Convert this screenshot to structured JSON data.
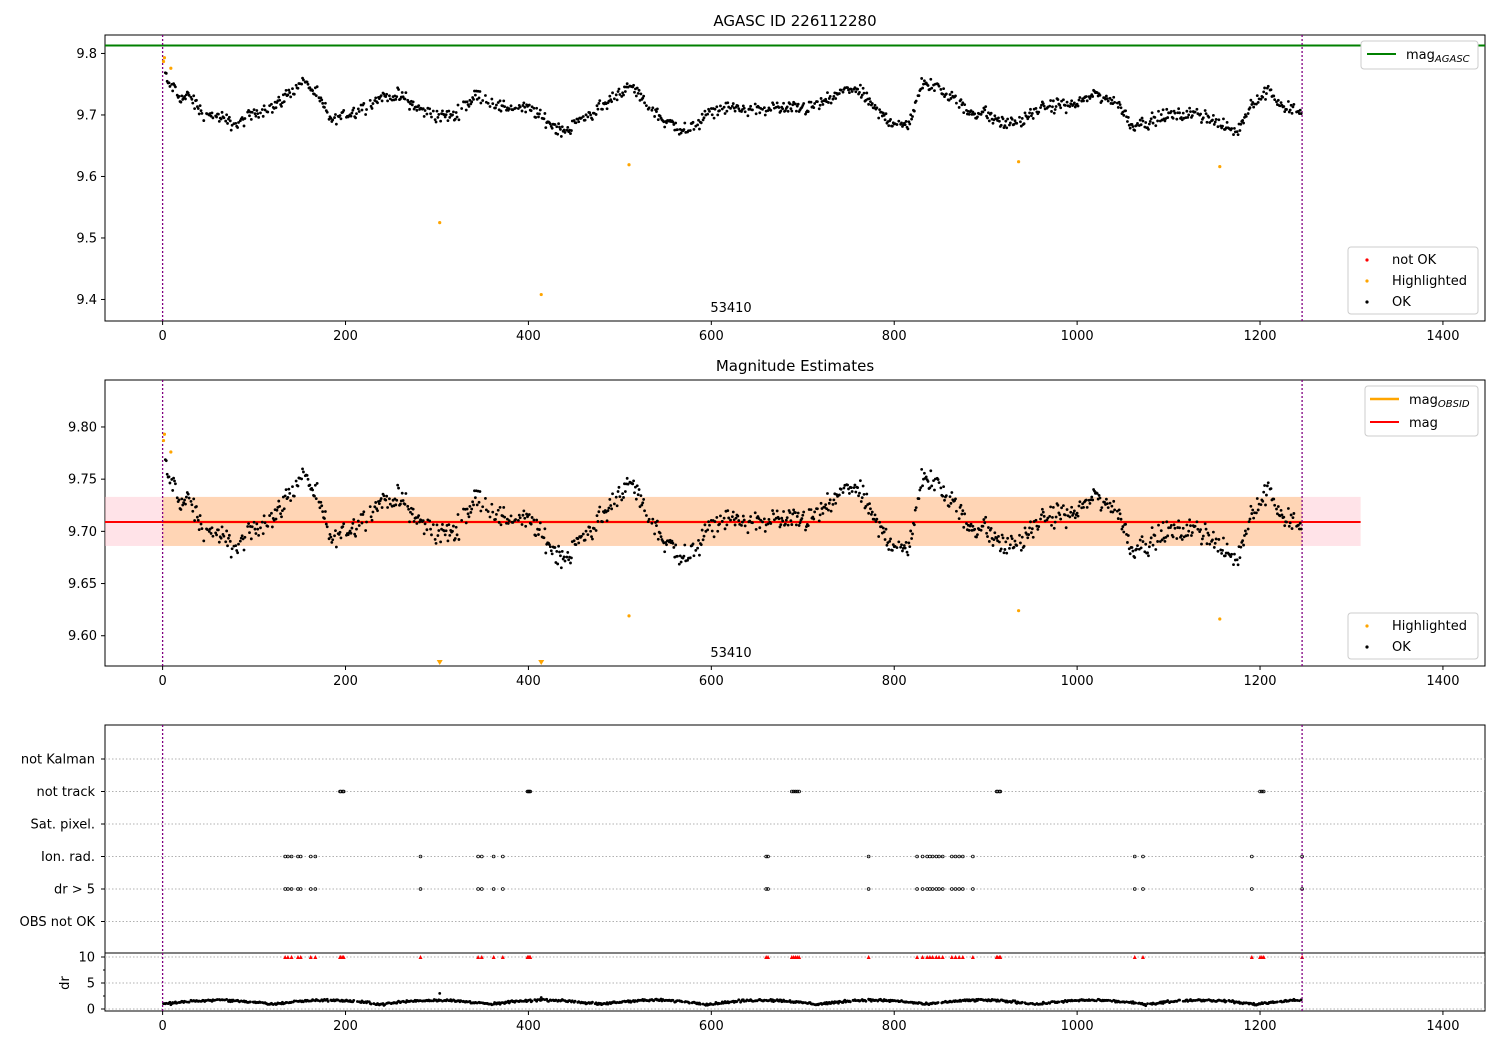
{
  "chart_data": [
    {
      "type": "scatter",
      "title": "AGASC ID 226112280",
      "xlim": [
        -63,
        1446
      ],
      "ylim": [
        9.365,
        9.83
      ],
      "xticks": [
        0,
        200,
        400,
        600,
        800,
        1000,
        1200,
        1400
      ],
      "xtick_labels": [
        "0",
        "200",
        "400",
        "600",
        "800",
        "1000",
        "1200",
        "1400"
      ],
      "yticks": [
        9.4,
        9.5,
        9.6,
        9.7,
        9.8
      ],
      "ytick_labels": [
        "9.4",
        "9.5",
        "9.6",
        "9.7",
        "9.8"
      ],
      "obsid_label": "53410",
      "obsid_label_x": 620,
      "obsid_bounds": [
        0,
        1246
      ],
      "mag_agasc": 9.813,
      "mag_agasc_xrange": [
        -63,
        1446
      ],
      "legend_top": {
        "entries": [
          {
            "label_main": "mag",
            "label_sub": "AGASC",
            "color": "#008000",
            "style": "line"
          }
        ]
      },
      "legend_bottom": {
        "entries": [
          {
            "label": "not OK",
            "color": "#ff0000",
            "style": "dot"
          },
          {
            "label": "Highlighted",
            "color": "#ffa500",
            "style": "dot"
          },
          {
            "label": "OK",
            "color": "#000000",
            "style": "dot"
          }
        ]
      },
      "highlighted_points": [
        [
          1,
          9.787
        ],
        [
          2,
          9.793
        ],
        [
          9,
          9.776
        ],
        [
          303,
          9.525
        ],
        [
          414,
          9.408
        ],
        [
          510,
          9.619
        ],
        [
          936,
          9.624
        ],
        [
          1156,
          9.616
        ]
      ],
      "ok_series_segments": [
        [
          0,
          9.765
        ],
        [
          10,
          9.748
        ],
        [
          20,
          9.727
        ],
        [
          30,
          9.73
        ],
        [
          45,
          9.7
        ],
        [
          60,
          9.698
        ],
        [
          80,
          9.682
        ],
        [
          100,
          9.703
        ],
        [
          120,
          9.712
        ],
        [
          140,
          9.737
        ],
        [
          155,
          9.755
        ],
        [
          170,
          9.73
        ],
        [
          185,
          9.69
        ],
        [
          200,
          9.7
        ],
        [
          220,
          9.712
        ],
        [
          240,
          9.73
        ],
        [
          260,
          9.732
        ],
        [
          280,
          9.71
        ],
        [
          300,
          9.698
        ],
        [
          320,
          9.7
        ],
        [
          345,
          9.735
        ],
        [
          365,
          9.715
        ],
        [
          385,
          9.71
        ],
        [
          400,
          9.712
        ],
        [
          420,
          9.69
        ],
        [
          440,
          9.673
        ],
        [
          460,
          9.695
        ],
        [
          480,
          9.712
        ],
        [
          500,
          9.738
        ],
        [
          515,
          9.745
        ],
        [
          530,
          9.715
        ],
        [
          550,
          9.69
        ],
        [
          575,
          9.673
        ],
        [
          600,
          9.705
        ],
        [
          620,
          9.712
        ],
        [
          650,
          9.708
        ],
        [
          670,
          9.712
        ],
        [
          690,
          9.71
        ],
        [
          710,
          9.712
        ],
        [
          730,
          9.725
        ],
        [
          750,
          9.743
        ],
        [
          765,
          9.735
        ],
        [
          785,
          9.7
        ],
        [
          800,
          9.688
        ],
        [
          815,
          9.682
        ],
        [
          830,
          9.75
        ],
        [
          850,
          9.745
        ],
        [
          865,
          9.73
        ],
        [
          880,
          9.705
        ],
        [
          900,
          9.703
        ],
        [
          920,
          9.685
        ],
        [
          940,
          9.69
        ],
        [
          960,
          9.71
        ],
        [
          980,
          9.717
        ],
        [
          1000,
          9.718
        ],
        [
          1020,
          9.735
        ],
        [
          1045,
          9.718
        ],
        [
          1060,
          9.683
        ],
        [
          1080,
          9.69
        ],
        [
          1100,
          9.7
        ],
        [
          1120,
          9.7
        ],
        [
          1140,
          9.7
        ],
        [
          1160,
          9.68
        ],
        [
          1175,
          9.673
        ],
        [
          1190,
          9.718
        ],
        [
          1210,
          9.74
        ],
        [
          1225,
          9.712
        ],
        [
          1245,
          9.708
        ]
      ]
    },
    {
      "type": "scatter",
      "title": "Magnitude Estimates",
      "xlim": [
        -63,
        1446
      ],
      "ylim": [
        9.571,
        9.845
      ],
      "xticks": [
        0,
        200,
        400,
        600,
        800,
        1000,
        1200,
        1400
      ],
      "xtick_labels": [
        "0",
        "200",
        "400",
        "600",
        "800",
        "1000",
        "1200",
        "1400"
      ],
      "yticks": [
        9.6,
        9.65,
        9.7,
        9.75,
        9.8
      ],
      "ytick_labels": [
        "9.60",
        "9.65",
        "9.70",
        "9.75",
        "9.80"
      ],
      "obsid_label": "53410",
      "obsid_label_x": 620,
      "obsid_bounds": [
        0,
        1246
      ],
      "mag_mean": 9.709,
      "mag_mean_xrange": [
        -63,
        1310
      ],
      "mag_band": [
        9.686,
        9.733
      ],
      "mag_obsid": 9.709,
      "mag_obsid_xrange": [
        0,
        1246
      ],
      "legend_top": {
        "entries": [
          {
            "label_main": "mag",
            "label_sub": "OBSID",
            "color": "#ffa500",
            "style": "line"
          },
          {
            "label_main": "mag",
            "label_sub": "",
            "color": "#ff0000",
            "style": "line"
          }
        ]
      },
      "legend_bottom": {
        "entries": [
          {
            "label": "Highlighted",
            "color": "#ffa500",
            "style": "dot"
          },
          {
            "label": "OK",
            "color": "#000000",
            "style": "dot"
          }
        ]
      },
      "highlighted_points": [
        [
          1,
          9.787
        ],
        [
          2,
          9.793
        ],
        [
          9,
          9.776
        ],
        [
          510,
          9.619
        ],
        [
          936,
          9.624
        ],
        [
          1156,
          9.616
        ]
      ],
      "offscale_markers": [
        303,
        414
      ]
    },
    {
      "type": "scatter",
      "title": "",
      "xlim": [
        -63,
        1446
      ],
      "xticks": [
        0,
        200,
        400,
        600,
        800,
        1000,
        1200,
        1400
      ],
      "xtick_labels": [
        "0",
        "200",
        "400",
        "600",
        "800",
        "1000",
        "1200",
        "1400"
      ],
      "flag_rows": [
        "not Kalman",
        "not track",
        "Sat. pixel.",
        "Ion. rad.",
        "dr > 5",
        "OBS not OK"
      ],
      "flags": {
        "not track": [
          194,
          195,
          197,
          198,
          399,
          400,
          401,
          402,
          688,
          690,
          692,
          694,
          696,
          912,
          913,
          915,
          916,
          1200,
          1202,
          1204
        ],
        "Ion. rad.": [
          134,
          137,
          141,
          148,
          151,
          162,
          167,
          282,
          345,
          349,
          362,
          372,
          660,
          662,
          772,
          825,
          831,
          836,
          839,
          842,
          846,
          849,
          853,
          863,
          867,
          871,
          875,
          886,
          1063,
          1072,
          1191,
          1246
        ],
        "dr > 5": [
          134,
          137,
          141,
          148,
          151,
          162,
          167,
          282,
          345,
          349,
          362,
          372,
          660,
          662,
          772,
          825,
          831,
          836,
          839,
          842,
          846,
          849,
          853,
          863,
          867,
          871,
          875,
          886,
          1063,
          1072,
          1191,
          1246
        ]
      },
      "dr_panel": {
        "ylabel": "dr",
        "yticks": [
          0,
          5,
          10
        ],
        "ytick_labels": [
          "0",
          "5",
          "10"
        ],
        "ylim": [
          -0.5,
          10.5
        ],
        "outliers_at_10": [
          134,
          137,
          141,
          148,
          151,
          162,
          167,
          194,
          195,
          197,
          198,
          282,
          345,
          349,
          362,
          372,
          399,
          400,
          401,
          402,
          660,
          662,
          688,
          690,
          692,
          694,
          696,
          772,
          825,
          831,
          836,
          839,
          842,
          846,
          849,
          853,
          863,
          867,
          871,
          875,
          886,
          912,
          913,
          915,
          916,
          1063,
          1072,
          1191,
          1200,
          1202,
          1204,
          1246
        ]
      }
    }
  ]
}
